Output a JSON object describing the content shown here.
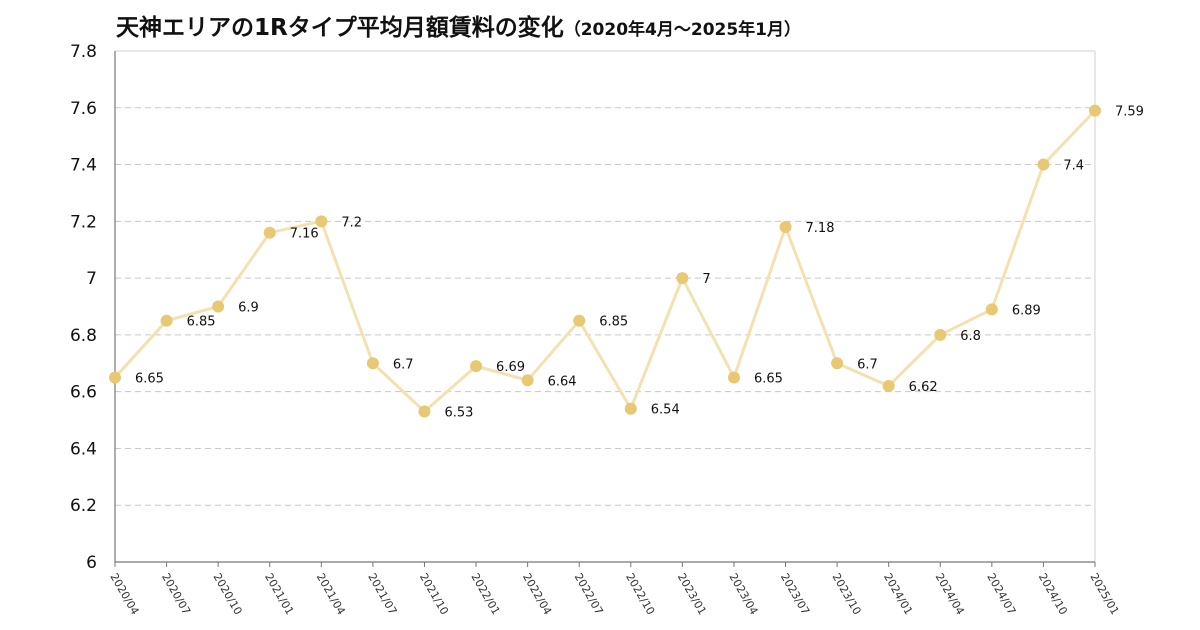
{
  "title": "天神エリアの1Rタイプ平均月額賃料の変化",
  "subtitle": "（2020年4月〜2025年1月）",
  "chart_data": {
    "type": "line",
    "title": "天神エリアの1Rタイプ平均月額賃料の変化",
    "subtitle": "（2020年4月〜2025年1月）",
    "xlabel": "",
    "ylabel": "",
    "ylim": [
      6,
      7.8
    ],
    "yticks": [
      "6",
      "6.2",
      "6.4",
      "6.6",
      "6.8",
      "7",
      "7.2",
      "7.4",
      "7.6",
      "7.8"
    ],
    "grid": true,
    "legend": "none",
    "categories": [
      "2020/04",
      "2020/07",
      "2020/10",
      "2021/01",
      "2021/04",
      "2021/07",
      "2021/10",
      "2022/01",
      "2022/04",
      "2022/07",
      "2022/10",
      "2023/01",
      "2023/04",
      "2023/07",
      "2023/10",
      "2024/01",
      "2024/04",
      "2024/07",
      "2024/10",
      "2025/01"
    ],
    "series": [
      {
        "values": [
          6.65,
          6.85,
          6.9,
          7.16,
          7.2,
          6.7,
          6.53,
          6.69,
          6.64,
          6.85,
          6.54,
          7,
          6.65,
          7.18,
          6.7,
          6.62,
          6.8,
          6.89,
          7.4,
          7.59
        ],
        "labels": [
          "6.65",
          "6.85",
          "6.9",
          "7.16",
          "7.2",
          "6.7",
          "6.53",
          "6.69",
          "6.64",
          "6.85",
          "6.54",
          "7",
          "6.65",
          "7.18",
          "6.7",
          "6.62",
          "6.8",
          "6.89",
          "7.4",
          "7.59"
        ],
        "line_color": "#f3e1b0",
        "marker_color": "#e8c872"
      }
    ]
  }
}
